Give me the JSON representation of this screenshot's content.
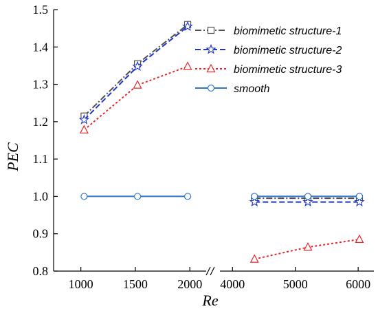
{
  "chart_data": {
    "type": "line",
    "xlabel": "Re",
    "ylabel": "PEC",
    "ylim": [
      0.8,
      1.5
    ],
    "yticks": [
      "0.8",
      "0.9",
      "1.0",
      "1.1",
      "1.2",
      "1.3",
      "1.4",
      "1.5"
    ],
    "x_axis_break": true,
    "x_segments": [
      {
        "range": [
          750,
          2150
        ],
        "ticks": [
          "1000",
          "1500",
          "2000"
        ]
      },
      {
        "range": [
          3800,
          6250
        ],
        "ticks": [
          "4000",
          "5000",
          "6000"
        ]
      }
    ],
    "grid": false,
    "legend_position": "top-right",
    "series": [
      {
        "name": "biomimetic structure-1",
        "color": "#505050",
        "dash": "dash-dot",
        "marker": "square",
        "points": [
          {
            "x": 1030,
            "y": 1.215
          },
          {
            "x": 1520,
            "y": 1.355
          },
          {
            "x": 1980,
            "y": 1.46
          },
          {
            "x": 4350,
            "y": 0.995
          },
          {
            "x": 5200,
            "y": 0.995
          },
          {
            "x": 6020,
            "y": 0.995
          }
        ]
      },
      {
        "name": "biomimetic structure-2",
        "color": "#1f35c8",
        "dash": "dash",
        "marker": "star",
        "points": [
          {
            "x": 1030,
            "y": 1.205
          },
          {
            "x": 1520,
            "y": 1.348
          },
          {
            "x": 1980,
            "y": 1.455
          },
          {
            "x": 4350,
            "y": 0.985
          },
          {
            "x": 5200,
            "y": 0.985
          },
          {
            "x": 6020,
            "y": 0.985
          }
        ]
      },
      {
        "name": "biomimetic structure-3",
        "color": "#e8262a",
        "dash": "dot",
        "marker": "triangle",
        "points": [
          {
            "x": 1030,
            "y": 1.178
          },
          {
            "x": 1520,
            "y": 1.298
          },
          {
            "x": 1980,
            "y": 1.348
          },
          {
            "x": 4350,
            "y": 0.832
          },
          {
            "x": 5200,
            "y": 0.864
          },
          {
            "x": 6020,
            "y": 0.885
          }
        ]
      },
      {
        "name": "smooth",
        "color": "#2f76c8",
        "dash": "solid",
        "marker": "circle",
        "points": [
          {
            "x": 1030,
            "y": 1.0
          },
          {
            "x": 1520,
            "y": 1.0
          },
          {
            "x": 1980,
            "y": 1.0
          },
          {
            "x": 4350,
            "y": 1.0
          },
          {
            "x": 5200,
            "y": 1.0
          },
          {
            "x": 6020,
            "y": 1.0
          }
        ]
      }
    ]
  }
}
